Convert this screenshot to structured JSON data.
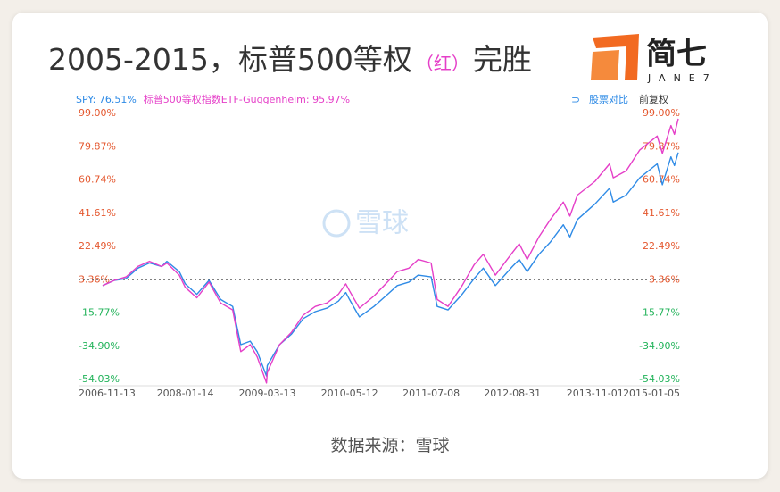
{
  "header": {
    "title": "2005-2015，标普500等权",
    "highlight": "（红）",
    "title_end": "完胜",
    "logo": "简七",
    "logo_sub": "JANE7"
  },
  "controls": {
    "compare": "股票对比",
    "adjust": "前复权"
  },
  "watermark": "雪球",
  "footer": "数据来源：雪球",
  "chart_data": {
    "type": "line",
    "x": [
      "2006-11-13",
      "2007-01-12",
      "2007-03-14",
      "2007-05-14",
      "2007-07-13",
      "2007-09-14",
      "2007-10-11",
      "2007-12-14",
      "2008-01-14",
      "2008-03-14",
      "2008-05-16",
      "2008-07-15",
      "2008-09-15",
      "2008-10-27",
      "2008-12-15",
      "2009-01-20",
      "2009-03-09",
      "2009-03-13",
      "2009-05-15",
      "2009-07-15",
      "2009-09-15",
      "2009-11-16",
      "2010-01-15",
      "2010-03-15",
      "2010-04-23",
      "2010-05-12",
      "2010-07-02",
      "2010-09-15",
      "2010-11-15",
      "2011-01-14",
      "2011-03-15",
      "2011-05-02",
      "2011-07-08",
      "2011-08-08",
      "2011-10-03",
      "2011-12-15",
      "2012-02-15",
      "2012-04-02",
      "2012-06-04",
      "2012-08-31",
      "2012-10-05",
      "2012-11-15",
      "2013-01-15",
      "2013-03-15",
      "2013-05-21",
      "2013-06-24",
      "2013-08-02",
      "2013-11-01",
      "2014-01-15",
      "2014-02-03",
      "2014-04-11",
      "2014-06-20",
      "2014-09-18",
      "2014-10-15",
      "2014-11-28",
      "2014-12-16",
      "2015-01-05"
    ],
    "series": [
      {
        "name": "SPY",
        "color": "#2f8be6",
        "latest": {
          "value": 76.51,
          "label": ": 76.51%"
        },
        "values": [
          0,
          3,
          4,
          10,
          13,
          11,
          14,
          8,
          1,
          -5,
          3,
          -8,
          -12,
          -34,
          -32,
          -38,
          -52,
          -46,
          -34,
          -28,
          -19,
          -15,
          -13,
          -9,
          -4,
          -8,
          -18,
          -12,
          -6,
          0,
          2,
          6,
          5,
          -12,
          -14,
          -5,
          4,
          10,
          0,
          11,
          15,
          8,
          18,
          25,
          35,
          28,
          38,
          47,
          56,
          48,
          52,
          62,
          70,
          58,
          74,
          69,
          76.51
        ]
      },
      {
        "name": "标普500等权指数ETF-Guggenheim",
        "color": "#e53fc8",
        "latest": {
          "value": 95.97,
          "label": ": 95.97%"
        },
        "values": [
          0,
          3,
          5,
          11,
          14,
          11,
          13,
          6,
          -1,
          -7,
          2,
          -10,
          -14,
          -38,
          -34,
          -41,
          -56,
          -50,
          -34,
          -27,
          -17,
          -12,
          -10,
          -5,
          1,
          -3,
          -13,
          -6,
          1,
          8,
          10,
          15,
          13,
          -8,
          -12,
          0,
          12,
          18,
          6,
          19,
          24,
          15,
          28,
          38,
          48,
          40,
          52,
          60,
          70,
          62,
          66,
          78,
          86,
          76,
          92,
          87,
          95.97
        ]
      }
    ],
    "xlim": [
      "2006-11-13",
      "2015-01-05"
    ],
    "xticks": [
      "2006-11-13",
      "2008-01-14",
      "2009-03-13",
      "2010-05-12",
      "2011-07-08",
      "2012-08-31",
      "2013-11-01",
      "2015-01-05"
    ],
    "ylim": [
      -57.6,
      102.6
    ],
    "yticks": [
      {
        "value": -54.03,
        "label": "-54.03%"
      },
      {
        "value": -34.9,
        "label": "-34.90%"
      },
      {
        "value": -15.77,
        "label": "-15.77%"
      },
      {
        "value": 3.36,
        "label": "3.36%"
      },
      {
        "value": 22.49,
        "label": "22.49%"
      },
      {
        "value": 41.61,
        "label": "41.61%"
      },
      {
        "value": 60.74,
        "label": "60.74%"
      },
      {
        "value": 79.87,
        "label": "79.87%"
      },
      {
        "value": 99.0,
        "label": "99.00%"
      }
    ],
    "reference_line": 3.36,
    "up_color": "#e4572e",
    "down_color": "#22b35a"
  }
}
